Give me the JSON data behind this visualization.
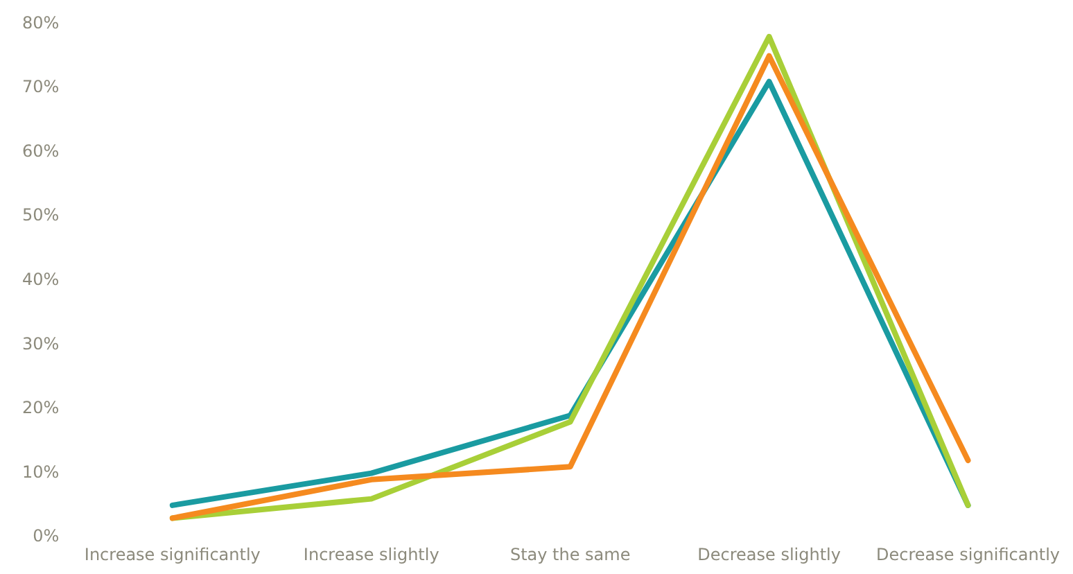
{
  "chart_data": {
    "type": "line",
    "categories": [
      "Increase significantly",
      "Increase slightly",
      "Stay the same",
      "Decrease slightly",
      "Decrease significantly"
    ],
    "series": [
      {
        "color": "#f58a1f",
        "values": [
          3,
          9,
          11,
          75,
          12
        ]
      },
      {
        "color": "#a8cf38",
        "values": [
          3,
          6,
          18,
          78,
          5
        ]
      },
      {
        "color": "#1a9ba1",
        "values": [
          5,
          10,
          19,
          71,
          5
        ]
      }
    ],
    "ylim": [
      0,
      80
    ],
    "yticks": [
      {
        "value": 0,
        "label": "0%"
      },
      {
        "value": 10,
        "label": "10%"
      },
      {
        "value": 20,
        "label": "20%"
      },
      {
        "value": 30,
        "label": "30%"
      },
      {
        "value": 40,
        "label": "40%"
      },
      {
        "value": 50,
        "label": "50%"
      },
      {
        "value": 60,
        "label": "60%"
      },
      {
        "value": 70,
        "label": "70%"
      },
      {
        "value": 80,
        "label": "80%"
      }
    ],
    "grid": false,
    "legend": false,
    "marker": "none",
    "line_style": "solid"
  }
}
